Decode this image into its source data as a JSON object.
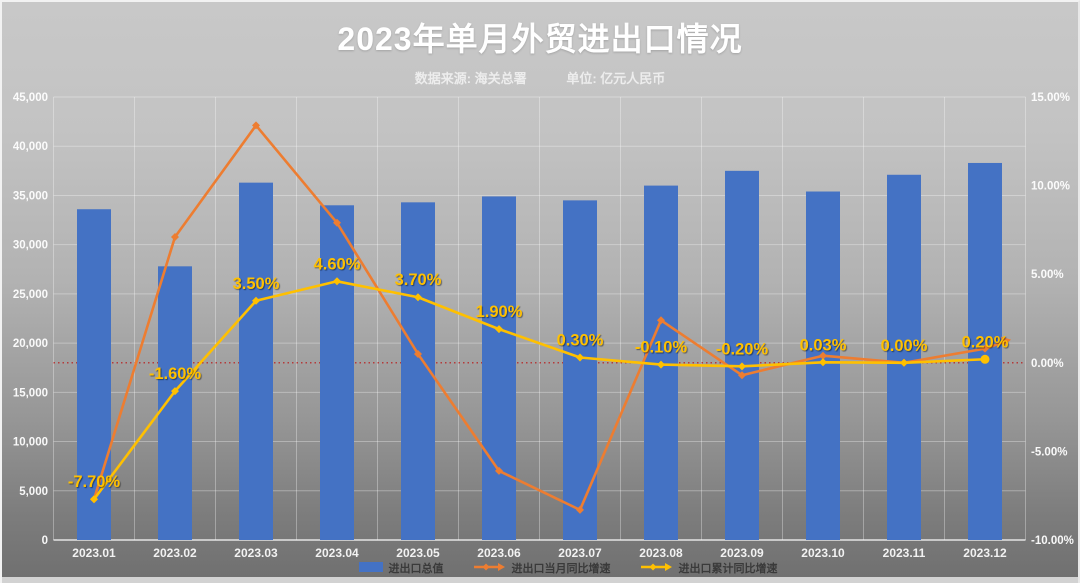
{
  "header": {
    "title": "2023年单月外贸进出口情况",
    "subtitle_source": "数据来源: 海关总署",
    "subtitle_unit": "单位: 亿元人民币"
  },
  "colors": {
    "background_top": "#c8c8c8",
    "background_bottom": "#6f6f6f",
    "title_text": "#ffffff",
    "axis_text": "#ffffff",
    "legend_text": "#3a3a3a",
    "gridline": "rgba(255,255,255,0.32)",
    "bar": "#4472c4",
    "monthly_line": "#ed7d31",
    "cumulative_line": "#ffc000",
    "data_label": "#ffc000",
    "zero_line": "#c00000"
  },
  "chart_data": {
    "type": "combo (bar + 2 lines)",
    "title": "2023年单月外贸进出口情况",
    "categories": [
      "2023.01",
      "2023.02",
      "2023.03",
      "2023.04",
      "2023.05",
      "2023.06",
      "2023.07",
      "2023.08",
      "2023.09",
      "2023.10",
      "2023.11",
      "2023.12"
    ],
    "series": [
      {
        "name": "进出口总值",
        "chart": "bar",
        "axis": "left",
        "color": "#4472c4",
        "values": [
          33600,
          27800,
          36300,
          34000,
          34300,
          34900,
          34500,
          36000,
          37500,
          35400,
          37100,
          38300
        ]
      },
      {
        "name": "进出口当月同比增速",
        "chart": "line",
        "axis": "right",
        "color": "#ed7d31",
        "values": [
          -7.7,
          7.1,
          13.4,
          7.9,
          0.5,
          -6.1,
          -8.3,
          2.4,
          -0.7,
          0.4,
          0.0,
          0.8
        ]
      },
      {
        "name": "进出口累计同比增速",
        "chart": "line",
        "axis": "right",
        "color": "#ffc000",
        "values": [
          -7.7,
          -1.6,
          3.5,
          4.6,
          3.7,
          1.9,
          0.3,
          -0.1,
          -0.2,
          0.03,
          0.0,
          0.2
        ],
        "point_labels": [
          "-7.70%",
          "-1.60%",
          "3.50%",
          "4.60%",
          "3.70%",
          "1.90%",
          "0.30%",
          "-0.10%",
          "-0.20%",
          "0.03%",
          "0.00%",
          "0.20%"
        ]
      }
    ],
    "left_axis": {
      "min": 0,
      "max": 45000,
      "step": 5000,
      "tick_labels": [
        "0",
        "5,000",
        "10,000",
        "15,000",
        "20,000",
        "25,000",
        "30,000",
        "35,000",
        "40,000",
        "45,000"
      ]
    },
    "right_axis": {
      "min": -10,
      "max": 15,
      "step": 5,
      "tick_labels": [
        "-10.00%",
        "-5.00%",
        "0.00%",
        "5.00%",
        "10.00%",
        "15.00%"
      ]
    },
    "zero_reference_line": {
      "value": 0,
      "color": "#c00000",
      "style": "dotted"
    },
    "grid": true,
    "legend_position": "bottom"
  }
}
